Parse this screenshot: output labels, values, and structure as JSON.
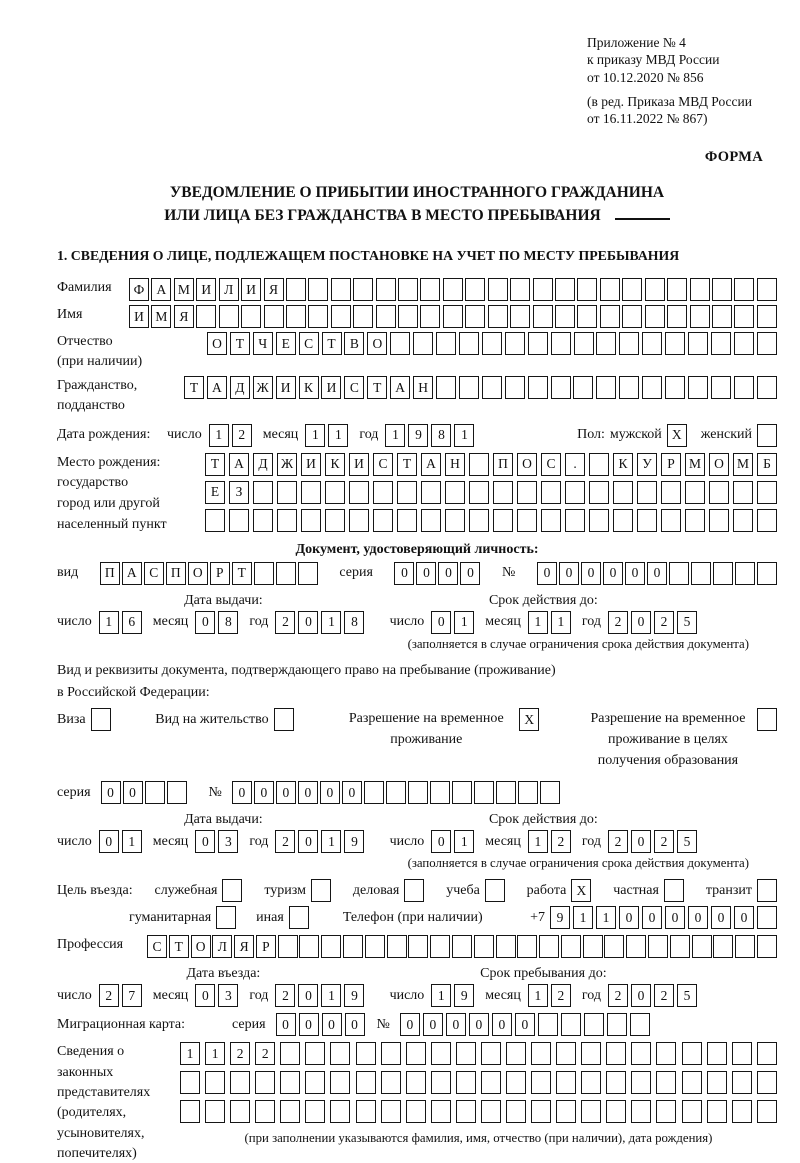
{
  "colors": {
    "ink": "#111111",
    "paper": "#ffffff"
  },
  "appendix": {
    "lines": [
      "Приложение № 4",
      "к приказу МВД России",
      "от 10.12.2020 № 856"
    ],
    "amendment": [
      "(в ред. Приказа МВД России",
      "от 16.11.2022 № 867)"
    ]
  },
  "form_label": "ФОРМА",
  "title": {
    "line1": "УВЕДОМЛЕНИЕ О ПРИБЫТИИ ИНОСТРАННОГО ГРАЖДАНИНА",
    "line2": "ИЛИ ЛИЦА БЕЗ ГРАЖДАНСТВА В МЕСТО ПРЕБЫВАНИЯ"
  },
  "section1": {
    "heading": "1. СВЕДЕНИЯ О ЛИЦЕ, ПОДЛЕЖАЩЕМ ПОСТАНОВКЕ НА УЧЕТ ПО МЕСТУ ПРЕБЫВАНИЯ"
  },
  "surname": {
    "label": "Фамилия",
    "boxes": {
      "v": "ФАМИЛИЯ",
      "n": 29
    }
  },
  "given_name": {
    "label": "Имя",
    "boxes": {
      "v": "ИМЯ",
      "n": 29
    }
  },
  "patronymic": {
    "label1": "Отчество",
    "label2": "(при наличии)",
    "boxes": {
      "v": "ОТЧЕСТВО",
      "n": 25
    }
  },
  "citizenship": {
    "label1": "Гражданство,",
    "label2": "подданство",
    "boxes": {
      "v": "ТАДЖИКИСТАН",
      "n": 26
    }
  },
  "birth": {
    "label": "Дата рождения:",
    "date": {
      "day_label": "число",
      "day": {
        "v": "12",
        "n": 2
      },
      "month_label": "месяц",
      "month": {
        "v": "11",
        "n": 2
      },
      "year_label": "год",
      "year": {
        "v": "1981",
        "n": 4
      }
    }
  },
  "gender": {
    "label": "Пол:",
    "male_label": "мужской",
    "male_checked": true,
    "female_label": "женский",
    "female_checked": false
  },
  "birth_place": {
    "label1": "Место рождения:",
    "label2": "государство",
    "label3": "город или другой",
    "label4": "населенный пункт",
    "row1": {
      "v": "ТАДЖИКИСТАН ПОС. КУРМОМБ",
      "n": 24
    },
    "row2": {
      "v": "ЕЗ",
      "n": 24
    },
    "row3": {
      "v": "",
      "n": 24
    }
  },
  "identity_doc": {
    "heading": "Документ, удостоверяющий личность:",
    "type_label": "вид",
    "type_boxes": {
      "v": "ПАСПОРТ",
      "n": 10
    },
    "series_label": "серия",
    "series_boxes": {
      "v": "0000",
      "n": 4
    },
    "number_label": "№",
    "number_boxes": {
      "v": "000000",
      "n": 11
    },
    "issue_label": "Дата выдачи:",
    "issue": {
      "day_label": "число",
      "day": {
        "v": "16",
        "n": 2
      },
      "month_label": "месяц",
      "month": {
        "v": "08",
        "n": 2
      },
      "year_label": "год",
      "year": {
        "v": "2018",
        "n": 4
      }
    },
    "expiry_label": "Срок действия до:",
    "expiry": {
      "day_label": "число",
      "day": {
        "v": "01",
        "n": 2
      },
      "month_label": "месяц",
      "month": {
        "v": "11",
        "n": 2
      },
      "year_label": "год",
      "year": {
        "v": "2025",
        "n": 4
      }
    },
    "note": "(заполняется в случае ограничения срока действия документа)"
  },
  "residence_doc": {
    "intro1": "Вид и реквизиты документа, подтверждающего право на пребывание (проживание)",
    "intro2": "в Российской Федерации:",
    "options": [
      {
        "label": "Виза",
        "checked": false
      },
      {
        "label": "Вид на жительство",
        "checked": false
      },
      {
        "label": "Разрешение на временное проживание",
        "checked": true
      },
      {
        "label": "Разрешение на временное проживание в целях получения образования",
        "checked": false
      }
    ],
    "series_label": "серия",
    "series_boxes": {
      "v": "00",
      "n": 4
    },
    "number_label": "№",
    "number_boxes": {
      "v": "000000",
      "n": 15
    },
    "issue_label": "Дата выдачи:",
    "issue": {
      "day_label": "число",
      "day": {
        "v": "01",
        "n": 2
      },
      "month_label": "месяц",
      "month": {
        "v": "03",
        "n": 2
      },
      "year_label": "год",
      "year": {
        "v": "2019",
        "n": 4
      }
    },
    "expiry_label": "Срок действия до:",
    "expiry": {
      "day_label": "число",
      "day": {
        "v": "01",
        "n": 2
      },
      "month_label": "месяц",
      "month": {
        "v": "12",
        "n": 2
      },
      "year_label": "год",
      "year": {
        "v": "2025",
        "n": 4
      }
    },
    "note": "(заполняется в случае ограничения срока действия документа)"
  },
  "purpose": {
    "label": "Цель въезда:",
    "options": [
      {
        "label": "служебная",
        "checked": false
      },
      {
        "label": "туризм",
        "checked": false
      },
      {
        "label": "деловая",
        "checked": false
      },
      {
        "label": "учеба",
        "checked": false
      },
      {
        "label": "работа",
        "checked": true
      },
      {
        "label": "частная",
        "checked": false
      },
      {
        "label": "транзит",
        "checked": false
      },
      {
        "label": "гуманитарная",
        "checked": false
      },
      {
        "label": "иная",
        "checked": false
      }
    ],
    "phone_label": "Телефон (при наличии)",
    "phone_prefix": "+7",
    "phone_boxes": {
      "v": "911000000",
      "n": 10
    }
  },
  "profession": {
    "label": "Профессия",
    "boxes": {
      "v": "СТОЛЯР",
      "n": 29
    }
  },
  "entry": {
    "date_label": "Дата въезда:",
    "date": {
      "day_label": "число",
      "day": {
        "v": "27",
        "n": 2
      },
      "month_label": "месяц",
      "month": {
        "v": "03",
        "n": 2
      },
      "year_label": "год",
      "year": {
        "v": "2019",
        "n": 4
      }
    },
    "stay_label": "Срок пребывания до:",
    "stay": {
      "day_label": "число",
      "day": {
        "v": "19",
        "n": 2
      },
      "month_label": "месяц",
      "month": {
        "v": "12",
        "n": 2
      },
      "year_label": "год",
      "year": {
        "v": "2025",
        "n": 4
      }
    }
  },
  "migration_card": {
    "label": "Миграционная карта:",
    "series_label": "серия",
    "series_boxes": {
      "v": "0000",
      "n": 4
    },
    "number_label": "№",
    "number_boxes": {
      "v": "000000",
      "n": 11
    }
  },
  "legal_reps": {
    "label1": "Сведения о",
    "label2": "законных",
    "label3": "представителях",
    "label4": "(родителях,",
    "label5": "усыновителях,",
    "label6": "попечителях)",
    "row1": {
      "v": "1122",
      "n": 24
    },
    "row2": {
      "v": "",
      "n": 24
    },
    "row3": {
      "v": "",
      "n": 24
    },
    "note": "(при заполнении указываются фамилия, имя, отчество (при наличии), дата рождения)"
  }
}
